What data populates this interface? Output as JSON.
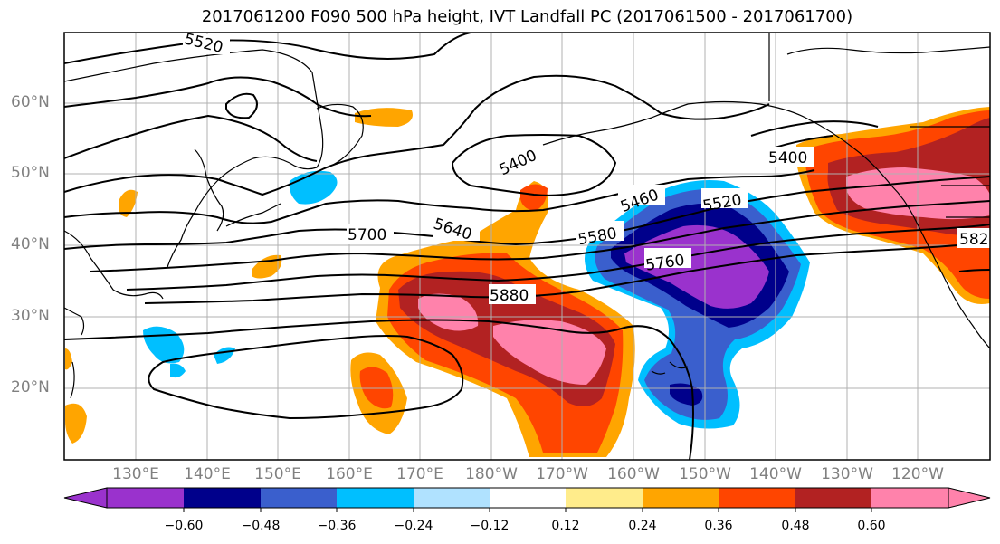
{
  "title": "2017061200 F090 500 hPa height, IVT Landfall PC (2017061500 - 2017061700)",
  "lat_labels": [
    "60°N",
    "50°N",
    "40°N",
    "30°N",
    "20°N"
  ],
  "lon_labels": [
    "130°E",
    "140°E",
    "150°E",
    "160°E",
    "170°E",
    "180°W",
    "170°W",
    "160°W",
    "150°W",
    "140°W",
    "130°W",
    "120°W"
  ],
  "contour_labels": [
    "5520",
    "5400",
    "5400",
    "5460",
    "5520",
    "5580",
    "5640",
    "5700",
    "5760",
    "5880",
    "582"
  ],
  "colorbar": {
    "ticks": [
      "−0.60",
      "−0.48",
      "−0.36",
      "−0.24",
      "−0.12",
      "0.12",
      "0.24",
      "0.36",
      "0.48",
      "0.60"
    ],
    "colors": [
      "#9a32cd",
      "#00008b",
      "#3a5fcd",
      "#00bfff",
      "#b0e2ff",
      "#ffffff",
      "#ffec8b",
      "#ffa500",
      "#ff4500",
      "#b22222",
      "#ff82ab"
    ]
  }
}
